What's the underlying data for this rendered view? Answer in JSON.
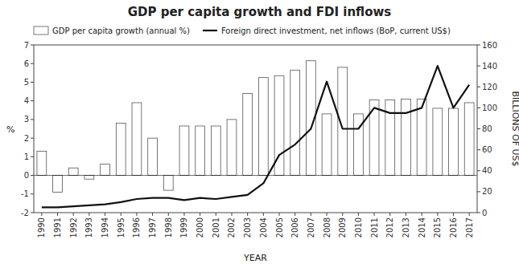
{
  "chart_data": {
    "type": "bar",
    "title": "GDP per capita growth and FDI inflows",
    "x": [
      1990,
      1991,
      1992,
      1993,
      1994,
      1995,
      1996,
      1997,
      1998,
      1999,
      2000,
      2001,
      2002,
      2003,
      2004,
      2005,
      2006,
      2007,
      2008,
      2009,
      2010,
      2011,
      2012,
      2013,
      2014,
      2015,
      2016,
      2017
    ],
    "series": [
      {
        "name": "GDP per capita growth (annual %)",
        "type": "bar",
        "color": "#ffffff",
        "values": [
          1.3,
          -0.9,
          0.4,
          -0.2,
          0.6,
          2.8,
          3.9,
          2.0,
          -0.8,
          2.65,
          2.65,
          2.65,
          3.0,
          4.4,
          5.25,
          5.35,
          5.65,
          6.15,
          3.3,
          5.8,
          3.3,
          4.05,
          4.05,
          4.1,
          4.1,
          3.6,
          3.6,
          3.9
        ]
      },
      {
        "name": "Foreign direct investment, net inflows (BoP, current US$)",
        "type": "line",
        "axis": "y2",
        "color": "#111111",
        "values": [
          5,
          5,
          6,
          7,
          8,
          10,
          13,
          14,
          14,
          12,
          14,
          13,
          15,
          17,
          28,
          55,
          65,
          80,
          125,
          80,
          80,
          100,
          95,
          95,
          100,
          140,
          100,
          122
        ]
      }
    ],
    "x_label": "YEAR",
    "y_label": "%",
    "y2_label": "BILLIONS OF US$",
    "xlim": [
      1989.5,
      2017.5
    ],
    "xticks": [
      1990,
      1991,
      1992,
      1993,
      1994,
      1995,
      1996,
      1997,
      1998,
      1999,
      2000,
      2001,
      2002,
      2003,
      2004,
      2005,
      2006,
      2007,
      2008,
      2009,
      2010,
      2011,
      2012,
      2013,
      2014,
      2015,
      2016,
      2017
    ],
    "ylim": [
      -2,
      7
    ],
    "yticks": [
      -2,
      -1,
      0,
      1,
      2,
      3,
      4,
      5,
      6,
      7
    ],
    "y2lim": [
      0,
      160
    ],
    "y2ticks": [
      0,
      20,
      40,
      60,
      80,
      100,
      120,
      140,
      160
    ],
    "grid": false,
    "legend": "upper left"
  }
}
